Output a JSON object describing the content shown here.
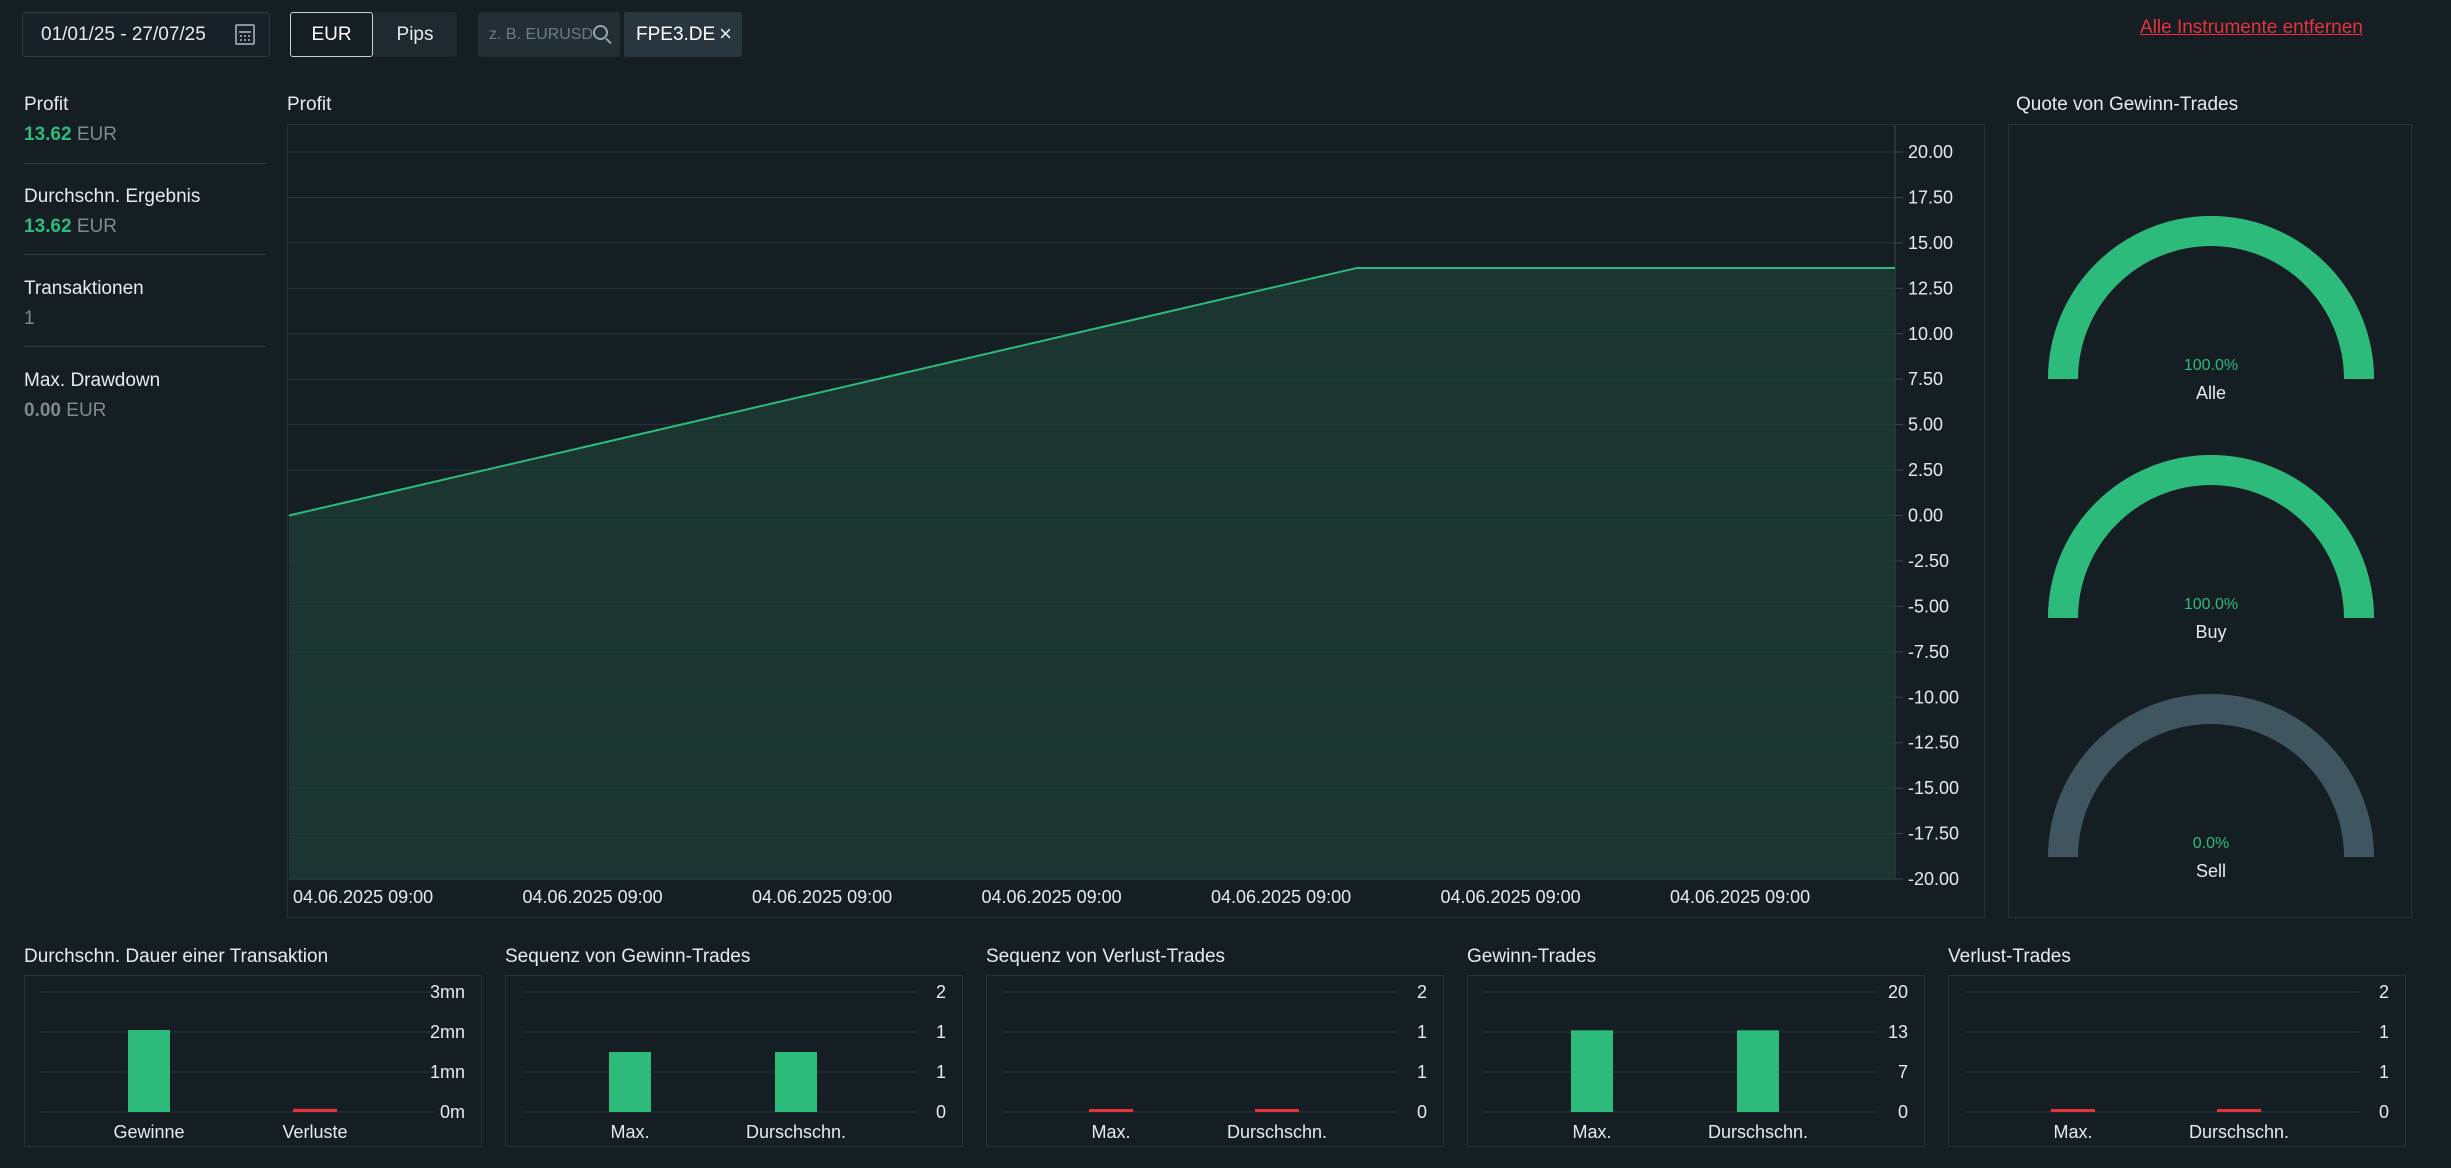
{
  "toolbar": {
    "date_range": "01/01/25 - 27/07/25",
    "calendar_icon": "calendar-icon",
    "currency_options": [
      "EUR",
      "Pips"
    ],
    "selected_currency": "EUR",
    "search_placeholder": "z. B. EURUSD",
    "search_icon": "search-icon",
    "instrument_tag": "FPE3.DE",
    "remove_all_label": "Alle Instrumente entfernen"
  },
  "stats": [
    {
      "label": "Profit",
      "value": "13.62",
      "unit": "EUR",
      "value_color": "#2dbb7b"
    },
    {
      "label": "Durchschn. Ergebnis",
      "value": "13.62",
      "unit": "EUR",
      "value_color": "#2dbb7b"
    },
    {
      "label": "Transaktionen",
      "value": "1",
      "unit": "",
      "value_color": "#7d8a92"
    },
    {
      "label": "Max. Drawdown",
      "value": "0.00",
      "unit": "EUR",
      "value_color": "#7d8a92"
    }
  ],
  "colors": {
    "positive": "#2dbb7b",
    "negative": "#e5323b",
    "neutral_gauge": "#3f5560",
    "area_fill": "#1d3f35"
  },
  "main_chart": {
    "title": "Profit",
    "chart_data": {
      "type": "area",
      "x_tick_labels": [
        "04.06.2025 09:00",
        "04.06.2025 09:00",
        "04.06.2025 09:00",
        "04.06.2025 09:00",
        "04.06.2025 09:00",
        "04.06.2025 09:00",
        "04.06.2025 09:00"
      ],
      "y_ticks": [
        20,
        17.5,
        15,
        12.5,
        10,
        7.5,
        5,
        2.5,
        0,
        -2.5,
        -5,
        -7.5,
        -10,
        -12.5,
        -15,
        -17.5,
        -20
      ],
      "y_tick_labels": [
        "20.00",
        "17.50",
        "15.00",
        "12.50",
        "10.00",
        "7.50",
        "5.00",
        "2.50",
        "0.00",
        "-2.50",
        "-5.00",
        "-7.50",
        "-10.00",
        "-12.50",
        "-15.00",
        "-17.50",
        "-20.00"
      ],
      "ylim": [
        -20,
        20
      ],
      "series": [
        {
          "x_fraction": [
            0,
            0.665,
            1
          ],
          "values": [
            0,
            13.62,
            13.62
          ]
        }
      ],
      "grid": true,
      "y_axis_side": "right"
    }
  },
  "gauges": {
    "title": "Quote von Gewinn-Trades",
    "items": [
      {
        "label": "Alle",
        "percent_text": "100.0%",
        "percent": 100,
        "color": "#2dbb7b",
        "text_color": "#2dbb7b"
      },
      {
        "label": "Buy",
        "percent_text": "100.0%",
        "percent": 100,
        "color": "#2dbb7b",
        "text_color": "#2dbb7b"
      },
      {
        "label": "Sell",
        "percent_text": "0.0%",
        "percent": 0,
        "color": "#3f5560",
        "text_color": "#2dbb7b"
      }
    ]
  },
  "mini_charts": [
    {
      "title": "Durchschn. Dauer einer Transaktion",
      "chart_data": {
        "type": "bar",
        "categories": [
          "Gewinne",
          "Verluste"
        ],
        "values": [
          2.05,
          0.08
        ],
        "ylim": [
          0,
          3
        ],
        "y_tick_labels": [
          "3mn",
          "2mn",
          "1mn",
          "0m"
        ],
        "bar_colors": [
          "#2dbb7b",
          "#e5323b"
        ]
      }
    },
    {
      "title": "Sequenz von Gewinn-Trades",
      "chart_data": {
        "type": "bar",
        "categories": [
          "Max.",
          "Durschschn."
        ],
        "values": [
          1,
          1
        ],
        "ylim": [
          0,
          2
        ],
        "y_tick_labels": [
          "2",
          "1",
          "1",
          "0"
        ],
        "bar_colors": [
          "#2dbb7b",
          "#2dbb7b"
        ]
      }
    },
    {
      "title": "Sequenz von Verlust-Trades",
      "chart_data": {
        "type": "bar",
        "categories": [
          "Max.",
          "Durschschn."
        ],
        "values": [
          0.03,
          0.03
        ],
        "ylim": [
          0,
          2
        ],
        "y_tick_labels": [
          "2",
          "1",
          "1",
          "0"
        ],
        "bar_colors": [
          "#e5323b",
          "#e5323b"
        ]
      }
    },
    {
      "title": "Gewinn-Trades",
      "chart_data": {
        "type": "bar",
        "categories": [
          "Max.",
          "Durschschn."
        ],
        "values": [
          13.62,
          13.62
        ],
        "ylim": [
          0,
          20
        ],
        "y_tick_labels": [
          "20",
          "13",
          "7",
          "0"
        ],
        "bar_colors": [
          "#2dbb7b",
          "#2dbb7b"
        ]
      }
    },
    {
      "title": "Verlust-Trades",
      "chart_data": {
        "type": "bar",
        "categories": [
          "Max.",
          "Durschschn."
        ],
        "values": [
          0.03,
          0.03
        ],
        "ylim": [
          0,
          2
        ],
        "y_tick_labels": [
          "2",
          "1",
          "1",
          "0"
        ],
        "bar_colors": [
          "#e5323b",
          "#e5323b"
        ]
      }
    }
  ]
}
